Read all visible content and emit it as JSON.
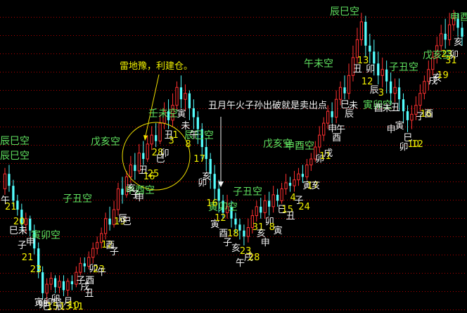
{
  "chart_data": {
    "type": "candlestick",
    "title": "",
    "xlabel": "",
    "ylabel": "",
    "ylim": [
      0,
      100
    ],
    "grid": "horizontal red dotted lines",
    "colors": {
      "up": "#ff3030",
      "down": "#54ffff",
      "kong_label": "#5fe05f",
      "note_label": "#f0f000",
      "annotation": "#f4f4f4",
      "grid": "#b00000"
    },
    "candles": [
      [
        40,
        45,
        38,
        47
      ],
      [
        45,
        41,
        39,
        48
      ],
      [
        41,
        36,
        34,
        43
      ],
      [
        36,
        33,
        31,
        38
      ],
      [
        33,
        28,
        26,
        35
      ],
      [
        28,
        30,
        25,
        32
      ],
      [
        30,
        26,
        24,
        31
      ],
      [
        26,
        20,
        18,
        28
      ],
      [
        20,
        12,
        10,
        22
      ],
      [
        12,
        5,
        3,
        14
      ],
      [
        5,
        8,
        2,
        10
      ],
      [
        8,
        10,
        6,
        12
      ],
      [
        10,
        7,
        5,
        11
      ],
      [
        7,
        9,
        5,
        11
      ],
      [
        9,
        6,
        4,
        11
      ],
      [
        6,
        9,
        4,
        10
      ],
      [
        9,
        8,
        6,
        11
      ],
      [
        8,
        12,
        7,
        14
      ],
      [
        12,
        15,
        11,
        17
      ],
      [
        15,
        14,
        12,
        17
      ],
      [
        14,
        17,
        13,
        19
      ],
      [
        17,
        20,
        15,
        22
      ],
      [
        20,
        22,
        18,
        24
      ],
      [
        22,
        25,
        20,
        27
      ],
      [
        25,
        30,
        23,
        32
      ],
      [
        30,
        28,
        26,
        34
      ],
      [
        28,
        33,
        27,
        36
      ],
      [
        33,
        40,
        31,
        42
      ],
      [
        40,
        38,
        35,
        44
      ],
      [
        38,
        44,
        37,
        46
      ],
      [
        44,
        48,
        42,
        51
      ],
      [
        48,
        46,
        43,
        52
      ],
      [
        46,
        52,
        45,
        55
      ],
      [
        52,
        50,
        48,
        56
      ],
      [
        50,
        55,
        49,
        58
      ],
      [
        55,
        58,
        53,
        61
      ],
      [
        58,
        56,
        54,
        62
      ],
      [
        56,
        62,
        55,
        65
      ],
      [
        62,
        66,
        60,
        69
      ],
      [
        66,
        63,
        60,
        70
      ],
      [
        63,
        68,
        61,
        72
      ],
      [
        68,
        74,
        66,
        76
      ],
      [
        74,
        70,
        67,
        78
      ],
      [
        70,
        72,
        66,
        75
      ],
      [
        72,
        67,
        63,
        73
      ],
      [
        67,
        64,
        60,
        70
      ],
      [
        64,
        60,
        55,
        66
      ],
      [
        60,
        54,
        50,
        62
      ],
      [
        54,
        50,
        46,
        57
      ],
      [
        50,
        45,
        40,
        52
      ],
      [
        45,
        40,
        36,
        48
      ],
      [
        40,
        36,
        32,
        43
      ],
      [
        36,
        32,
        30,
        38
      ],
      [
        32,
        34,
        30,
        38
      ],
      [
        34,
        30,
        27,
        36
      ],
      [
        30,
        28,
        25,
        32
      ],
      [
        28,
        26,
        23,
        30
      ],
      [
        26,
        24,
        21,
        28
      ],
      [
        24,
        27,
        22,
        30
      ],
      [
        27,
        31,
        25,
        33
      ],
      [
        31,
        34,
        29,
        36
      ],
      [
        34,
        32,
        30,
        37
      ],
      [
        32,
        36,
        30,
        38
      ],
      [
        36,
        34,
        31,
        39
      ],
      [
        34,
        38,
        32,
        41
      ],
      [
        38,
        36,
        34,
        40
      ],
      [
        36,
        40,
        35,
        42
      ],
      [
        40,
        42,
        38,
        45
      ],
      [
        42,
        41,
        39,
        44
      ],
      [
        41,
        43,
        39,
        46
      ],
      [
        43,
        45,
        41,
        47
      ],
      [
        45,
        44,
        42,
        48
      ],
      [
        44,
        48,
        43,
        50
      ],
      [
        48,
        50,
        46,
        52
      ],
      [
        50,
        54,
        49,
        56
      ],
      [
        54,
        58,
        52,
        61
      ],
      [
        58,
        62,
        56,
        64
      ],
      [
        62,
        66,
        60,
        68
      ],
      [
        66,
        64,
        62,
        69
      ],
      [
        64,
        70,
        62,
        73
      ],
      [
        70,
        74,
        68,
        76
      ],
      [
        74,
        72,
        70,
        78
      ],
      [
        72,
        78,
        70,
        82
      ],
      [
        78,
        84,
        76,
        88
      ],
      [
        84,
        90,
        82,
        94
      ],
      [
        90,
        96,
        88,
        99
      ],
      [
        96,
        88,
        84,
        98
      ],
      [
        88,
        86,
        82,
        92
      ],
      [
        86,
        82,
        78,
        90
      ],
      [
        82,
        78,
        75,
        86
      ],
      [
        78,
        80,
        74,
        84
      ],
      [
        80,
        76,
        72,
        83
      ],
      [
        76,
        72,
        68,
        79
      ],
      [
        72,
        74,
        69,
        77
      ],
      [
        74,
        70,
        66,
        77
      ],
      [
        70,
        66,
        62,
        72
      ],
      [
        66,
        63,
        59,
        68
      ],
      [
        63,
        65,
        60,
        68
      ],
      [
        65,
        68,
        63,
        71
      ],
      [
        68,
        72,
        66,
        75
      ],
      [
        72,
        76,
        70,
        78
      ],
      [
        76,
        80,
        73,
        83
      ],
      [
        80,
        84,
        78,
        86
      ],
      [
        84,
        88,
        82,
        91
      ],
      [
        88,
        92,
        86,
        95
      ],
      [
        92,
        90,
        87,
        97
      ],
      [
        90,
        95,
        88,
        99
      ],
      [
        95,
        97,
        93,
        100
      ],
      [
        97,
        94,
        91,
        99
      ],
      [
        94,
        91,
        88,
        96
      ]
    ],
    "kong_labels": [
      "辰巳空",
      "辰巳空",
      "戊亥空",
      "子丑空",
      "壬未空",
      "辰巳空",
      "申酉空",
      "寅卯空",
      "寅卯空",
      "子丑空",
      "戊亥空",
      "申酉空",
      "午未空",
      "寅卯空",
      "辰巳空",
      "子丑空",
      "戊亥空",
      "申酉"
    ],
    "annotations": {
      "note1": "雷地豫，利建仓。",
      "note2": "丑月午火子孙出破就是卖出点"
    },
    "bar_markers": [
      "午",
      "21",
      "巳未",
      "20",
      "子",
      "21",
      "申",
      "23",
      "寅卯空",
      "卯",
      "巳",
      "15",
      "卯",
      "辰",
      "13",
      "月",
      "10",
      "11",
      "子酉",
      "戌",
      "丑",
      "卯",
      "23",
      "午",
      "12",
      "酉",
      "子",
      "19",
      "辰",
      "巳",
      "亥",
      "子",
      "申",
      "丑",
      "16",
      "25",
      "28",
      "巳",
      "卯",
      "丑",
      "3",
      "1",
      "寅",
      "未",
      "8",
      "午",
      "17",
      "卯",
      "亥",
      "16",
      "寅",
      "12",
      "酉",
      "子",
      "18",
      "亥",
      "午",
      "23",
      "戌",
      "28",
      "31",
      "亥",
      "申",
      "卯",
      "8",
      "寅",
      "巳",
      "15",
      "丑",
      "4",
      "子",
      "24",
      "寅",
      "17",
      "亥",
      "卯",
      "11",
      "戌",
      "申",
      "酉",
      "午",
      "巳",
      "辰",
      "未",
      "丑",
      "13",
      "12",
      "卯",
      "辰",
      "酉",
      "3",
      "未",
      "申",
      "丑",
      "寅",
      "卯",
      "巳",
      "10",
      "12",
      "子",
      "16",
      "酉",
      "戌",
      "亥",
      "19",
      "23",
      "31",
      "卯",
      "亥"
    ]
  }
}
